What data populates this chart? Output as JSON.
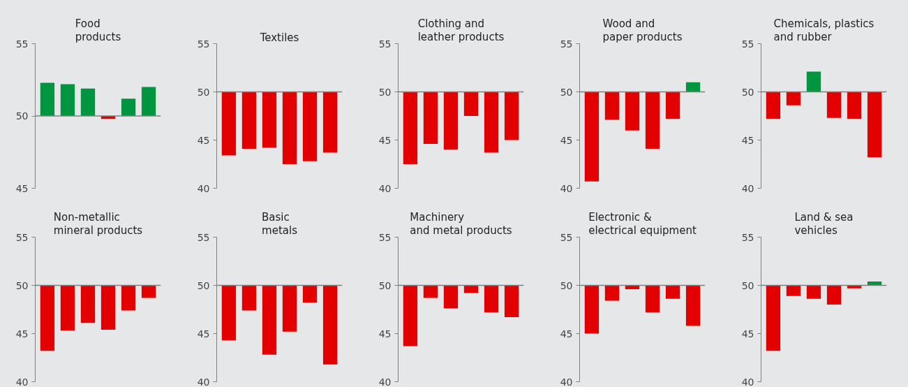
{
  "chart_data": [
    {
      "type": "bar",
      "title": "Food\nproducts",
      "categories": [
        null,
        null,
        null,
        null,
        null,
        null
      ],
      "base": [
        50,
        50,
        50,
        50,
        50,
        50
      ],
      "values": [
        2.3,
        2.2,
        1.9,
        -0.2,
        1.2,
        2.0
      ],
      "colors": [
        "#00963f",
        "#00963f",
        "#00963f",
        "#e30000",
        "#00963f",
        "#00963f"
      ],
      "ylim": [
        45,
        55
      ],
      "yticks": [
        45,
        50,
        55
      ],
      "ref_lines": [
        {
          "axis": "y",
          "value": 50,
          "color": "#808080"
        }
      ],
      "tick_labels": "y",
      "grid": false
    },
    {
      "type": "bar",
      "title": "Textiles",
      "categories": [
        null,
        null,
        null,
        null,
        null,
        null
      ],
      "base": [
        50,
        50,
        50,
        50,
        50,
        50
      ],
      "values": [
        -6.6,
        -5.9,
        -5.8,
        -7.5,
        -7.2,
        -6.3
      ],
      "colors": [
        "#e30000",
        "#e30000",
        "#e30000",
        "#e30000",
        "#e30000",
        "#e30000"
      ],
      "ylim": [
        40,
        55
      ],
      "yticks": [
        40,
        45,
        50,
        55
      ],
      "ref_lines": [
        {
          "axis": "y",
          "value": 50,
          "color": "#808080"
        }
      ],
      "tick_labels": "y",
      "grid": false
    },
    {
      "type": "bar",
      "title": "Clothing and\nleather products",
      "categories": [
        null,
        null,
        null,
        null,
        null,
        null
      ],
      "base": [
        50,
        50,
        50,
        50,
        50,
        50
      ],
      "values": [
        -7.5,
        -5.4,
        -6.0,
        -2.5,
        -6.3,
        -5.0
      ],
      "colors": [
        "#e30000",
        "#e30000",
        "#e30000",
        "#e30000",
        "#e30000",
        "#e30000"
      ],
      "ylim": [
        40,
        55
      ],
      "yticks": [
        40,
        45,
        50,
        55
      ],
      "ref_lines": [
        {
          "axis": "y",
          "value": 50,
          "color": "#808080"
        }
      ],
      "tick_labels": "y",
      "grid": false
    },
    {
      "type": "bar",
      "title": "Wood and\npaper products",
      "categories": [
        null,
        null,
        null,
        null,
        null,
        null
      ],
      "base": [
        50,
        50,
        50,
        50,
        50,
        50
      ],
      "values": [
        -9.3,
        -2.9,
        -4.0,
        -5.9,
        -2.8,
        1.0
      ],
      "colors": [
        "#e30000",
        "#e30000",
        "#e30000",
        "#e30000",
        "#e30000",
        "#00963f"
      ],
      "ylim": [
        40,
        55
      ],
      "yticks": [
        40,
        45,
        50,
        55
      ],
      "ref_lines": [
        {
          "axis": "y",
          "value": 50,
          "color": "#808080"
        }
      ],
      "tick_labels": "y",
      "grid": false
    },
    {
      "type": "bar",
      "title": "Chemicals, plastics\nand rubber",
      "categories": [
        null,
        null,
        null,
        null,
        null,
        null
      ],
      "base": [
        50,
        50,
        50,
        50,
        50,
        50
      ],
      "values": [
        -2.8,
        -1.4,
        2.1,
        -2.7,
        -2.8,
        -6.8
      ],
      "colors": [
        "#e30000",
        "#e30000",
        "#00963f",
        "#e30000",
        "#e30000",
        "#e30000"
      ],
      "ylim": [
        40,
        55
      ],
      "yticks": [
        40,
        45,
        50,
        55
      ],
      "ref_lines": [
        {
          "axis": "y",
          "value": 50,
          "color": "#808080"
        }
      ],
      "tick_labels": "y",
      "grid": false
    },
    {
      "type": "bar",
      "title": "Non-metallic\nmineral products",
      "categories": [
        null,
        null,
        null,
        null,
        null,
        null
      ],
      "base": [
        50,
        50,
        50,
        50,
        50,
        50
      ],
      "values": [
        -6.8,
        -4.7,
        -3.9,
        -4.6,
        -2.6,
        -1.3
      ],
      "colors": [
        "#e30000",
        "#e30000",
        "#e30000",
        "#e30000",
        "#e30000",
        "#e30000"
      ],
      "ylim": [
        40,
        55
      ],
      "yticks": [
        40,
        45,
        50,
        55
      ],
      "ref_lines": [
        {
          "axis": "y",
          "value": 50,
          "color": "#808080"
        }
      ],
      "tick_labels": "y",
      "grid": false
    },
    {
      "type": "bar",
      "title": "Basic\nmetals",
      "categories": [
        null,
        null,
        null,
        null,
        null,
        null
      ],
      "base": [
        50,
        50,
        50,
        50,
        50,
        50
      ],
      "values": [
        -5.7,
        -2.6,
        -7.2,
        -4.8,
        -1.8,
        -8.2
      ],
      "colors": [
        "#e30000",
        "#e30000",
        "#e30000",
        "#e30000",
        "#e30000",
        "#e30000"
      ],
      "ylim": [
        40,
        55
      ],
      "yticks": [
        40,
        45,
        50,
        55
      ],
      "ref_lines": [
        {
          "axis": "y",
          "value": 50,
          "color": "#808080"
        }
      ],
      "tick_labels": "y",
      "grid": false
    },
    {
      "type": "bar",
      "title": "Machinery\nand metal products",
      "categories": [
        null,
        null,
        null,
        null,
        null,
        null
      ],
      "base": [
        50,
        50,
        50,
        50,
        50,
        50
      ],
      "values": [
        -6.3,
        -1.3,
        -2.4,
        -0.8,
        -2.8,
        -3.3
      ],
      "colors": [
        "#e30000",
        "#e30000",
        "#e30000",
        "#e30000",
        "#e30000",
        "#e30000"
      ],
      "ylim": [
        40,
        55
      ],
      "yticks": [
        40,
        45,
        50,
        55
      ],
      "ref_lines": [
        {
          "axis": "y",
          "value": 50,
          "color": "#808080"
        }
      ],
      "tick_labels": "y",
      "grid": false
    },
    {
      "type": "bar",
      "title": "Electronic &\nelectrical equipment",
      "categories": [
        null,
        null,
        null,
        null,
        null,
        null
      ],
      "base": [
        50,
        50,
        50,
        50,
        50,
        50
      ],
      "values": [
        -5.0,
        -1.6,
        -0.4,
        -2.8,
        -1.4,
        -4.2
      ],
      "colors": [
        "#e30000",
        "#e30000",
        "#e30000",
        "#e30000",
        "#e30000",
        "#e30000"
      ],
      "ylim": [
        40,
        55
      ],
      "yticks": [
        40,
        45,
        50,
        55
      ],
      "ref_lines": [
        {
          "axis": "y",
          "value": 50,
          "color": "#808080"
        }
      ],
      "tick_labels": "y",
      "grid": false
    },
    {
      "type": "bar",
      "title": "Land & sea\nvehicles",
      "categories": [
        null,
        null,
        null,
        null,
        null,
        null
      ],
      "base": [
        50,
        50,
        50,
        50,
        50,
        50
      ],
      "values": [
        -6.8,
        -1.1,
        -1.4,
        -2.0,
        -0.3,
        0.4
      ],
      "colors": [
        "#e30000",
        "#e30000",
        "#e30000",
        "#e30000",
        "#e30000",
        "#00963f"
      ],
      "ylim": [
        40,
        55
      ],
      "yticks": [
        40,
        45,
        50,
        55
      ],
      "ref_lines": [
        {
          "axis": "y",
          "value": 50,
          "color": "#808080"
        }
      ],
      "tick_labels": "y",
      "grid": false
    }
  ]
}
